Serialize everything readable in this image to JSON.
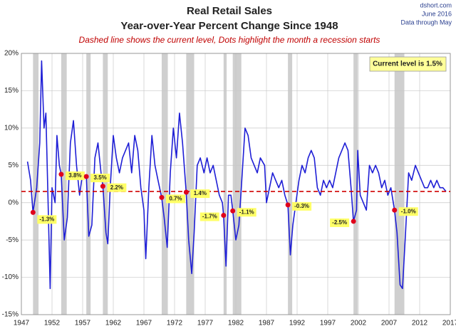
{
  "chart_data": {
    "type": "line",
    "title": "Real Retail Sales",
    "subtitle": "Year-over-Year Percent Change Since 1948",
    "note": "Dashed line shows the current level, Dots highlight the month a recession starts",
    "source": [
      "dshort.com",
      "June 2016",
      "Data through May"
    ],
    "annotation": "Current level is 1.5%",
    "color": "#1f1fd6",
    "grid": true,
    "xlim": [
      1947,
      2017
    ],
    "xticks": [
      1947,
      1952,
      1957,
      1962,
      1967,
      1972,
      1977,
      1982,
      1987,
      1992,
      1997,
      2002,
      2007,
      2012,
      2017
    ],
    "ylim": [
      -15,
      20
    ],
    "yticks": [
      {
        "value": -15,
        "label": "-15%"
      },
      {
        "value": -10,
        "label": "-10%"
      },
      {
        "value": -5,
        "label": "-5%"
      },
      {
        "value": 0,
        "label": "0%"
      },
      {
        "value": 5,
        "label": "5%"
      },
      {
        "value": 10,
        "label": "10%"
      },
      {
        "value": 15,
        "label": "15%"
      },
      {
        "value": 20,
        "label": "20%"
      }
    ],
    "current_level": 1.5,
    "current_level_color": "#d00000",
    "recession_color": "#cfcfcf",
    "recessions": [
      [
        1948.9,
        1949.8
      ],
      [
        1953.5,
        1954.4
      ],
      [
        1957.6,
        1958.3
      ],
      [
        1960.3,
        1961.1
      ],
      [
        1969.9,
        1970.9
      ],
      [
        1973.9,
        1975.2
      ],
      [
        1980.0,
        1980.5
      ],
      [
        1981.5,
        1982.9
      ],
      [
        1990.5,
        1991.2
      ],
      [
        2001.2,
        2001.9
      ],
      [
        2007.9,
        2009.5
      ]
    ],
    "recession_starts": {
      "color": "#e0001b",
      "x": [
        1948.9,
        1953.5,
        1957.6,
        1960.3,
        1969.9,
        1973.9,
        1980.0,
        1981.5,
        1990.5,
        2001.2,
        2007.9
      ],
      "values": [
        -1.3,
        3.8,
        3.5,
        2.2,
        0.7,
        1.4,
        -1.7,
        -1.1,
        -0.3,
        -2.5,
        -1.0
      ],
      "value_labels": [
        "-1.3%",
        "3.8%",
        "3.5%",
        "2.2%",
        "0.7%",
        "1.4%",
        "-1.7%",
        "-1.1%",
        "-0.3%",
        "-2.5%",
        "-1.0%"
      ]
    },
    "x": [
      1948.0,
      1948.5,
      1948.9,
      1949.5,
      1950.0,
      1950.3,
      1950.7,
      1951.0,
      1951.3,
      1951.7,
      1952.0,
      1952.5,
      1952.8,
      1953.2,
      1953.5,
      1954.0,
      1954.5,
      1955.0,
      1955.5,
      1956.0,
      1956.5,
      1957.0,
      1957.6,
      1958.0,
      1958.5,
      1959.0,
      1959.5,
      1960.0,
      1960.3,
      1960.8,
      1961.1,
      1961.5,
      1962.0,
      1962.5,
      1963.0,
      1963.5,
      1964.0,
      1964.5,
      1965.0,
      1965.5,
      1966.0,
      1966.5,
      1967.0,
      1967.3,
      1967.8,
      1968.3,
      1968.8,
      1969.3,
      1969.9,
      1970.3,
      1970.8,
      1971.3,
      1971.8,
      1972.3,
      1972.8,
      1973.3,
      1973.9,
      1974.3,
      1974.8,
      1975.2,
      1975.7,
      1976.2,
      1976.8,
      1977.3,
      1977.8,
      1978.3,
      1978.8,
      1979.3,
      1979.8,
      1980.0,
      1980.4,
      1980.8,
      1981.2,
      1981.5,
      1982.0,
      1982.5,
      1982.9,
      1983.5,
      1984.0,
      1984.5,
      1985.0,
      1985.5,
      1986.0,
      1986.7,
      1987.0,
      1987.5,
      1988.0,
      1988.5,
      1989.0,
      1989.5,
      1990.0,
      1990.5,
      1990.9,
      1991.3,
      1991.8,
      1992.3,
      1992.8,
      1993.3,
      1993.8,
      1994.3,
      1994.8,
      1995.3,
      1995.8,
      1996.3,
      1996.8,
      1997.3,
      1997.8,
      1998.3,
      1998.8,
      1999.3,
      1999.8,
      2000.3,
      2000.8,
      2001.2,
      2001.7,
      2001.9,
      2002.3,
      2002.8,
      2003.3,
      2003.8,
      2004.3,
      2004.8,
      2005.3,
      2005.8,
      2006.3,
      2006.8,
      2007.3,
      2007.9,
      2008.3,
      2008.8,
      2009.2,
      2009.7,
      2010.2,
      2010.7,
      2011.3,
      2011.8,
      2012.3,
      2012.8,
      2013.3,
      2013.8,
      2014.3,
      2014.8,
      2015.3,
      2015.8,
      2016.3
    ],
    "values": [
      5.5,
      3,
      -1.3,
      2,
      8,
      19,
      10,
      12,
      2,
      -11.5,
      2,
      0,
      9,
      5,
      3.8,
      -5,
      -2,
      8,
      11,
      5,
      1,
      4,
      3.5,
      -4.5,
      -3,
      6,
      8,
      4,
      2.2,
      -4,
      -5.5,
      2,
      9,
      6,
      4,
      6,
      7,
      8,
      4,
      9,
      7,
      2,
      -1,
      -7.5,
      2,
      9,
      5,
      3,
      0.7,
      -2,
      -6,
      4,
      10,
      6,
      12,
      8,
      1.4,
      -5,
      -9.5,
      -4,
      5,
      6,
      4,
      6,
      4,
      5,
      3,
      1,
      0,
      -1.7,
      -8.5,
      1,
      1,
      -1.1,
      -5,
      -3,
      2,
      10,
      9,
      6,
      5,
      4,
      6,
      5,
      0,
      2,
      4,
      3,
      2,
      3,
      1,
      -0.3,
      -7,
      -3,
      0,
      3,
      5,
      4,
      6,
      7,
      6,
      2,
      1,
      3,
      2,
      3,
      2,
      4,
      6,
      7,
      8,
      7,
      2,
      -2.5,
      -1,
      7,
      1,
      0,
      -1,
      5,
      4,
      5,
      4,
      2,
      3,
      1,
      2,
      -1,
      -4,
      -11,
      -11.5,
      -4,
      4,
      3,
      5,
      4,
      3,
      2,
      2,
      3,
      2,
      3,
      2,
      2,
      1.5
    ]
  }
}
